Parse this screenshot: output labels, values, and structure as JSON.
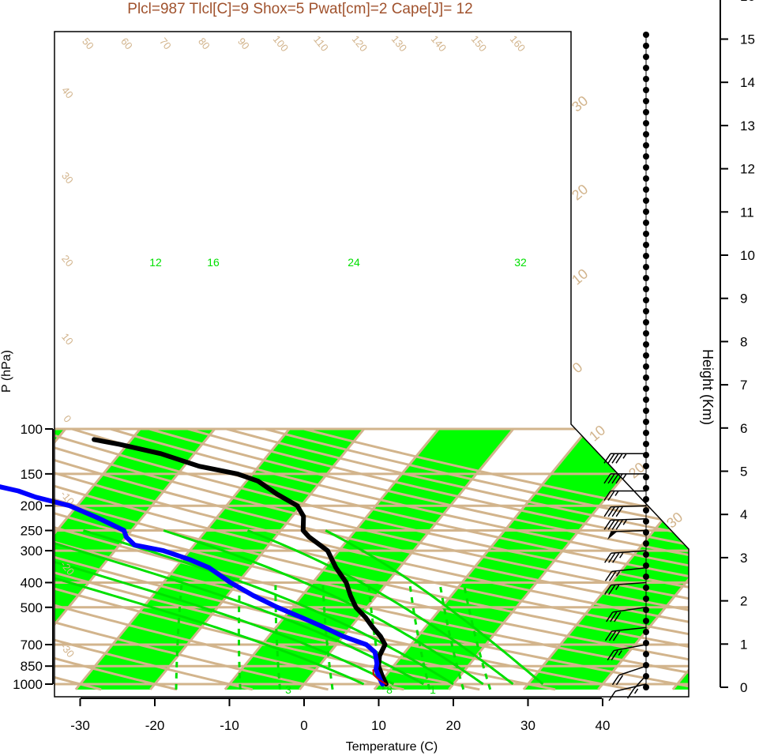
{
  "chart_data": {
    "type": "line",
    "subtype": "skew-T log-P sounding",
    "title": "Plcl=987 Tlcl[C]=9 Shox=5 Pwat[cm]=2 Cape[J]= 12",
    "xlabel": "Temperature (C)",
    "ylabel": "P (hPa)",
    "y2label": "Height (Km)",
    "xlim": [
      -34,
      52
    ],
    "ylim": [
      1050,
      100
    ],
    "yscale": "log",
    "x_ticks": [
      "-30",
      "-20",
      "-10",
      "0",
      "10",
      "20",
      "30",
      "40"
    ],
    "pressure_ticks": [
      "100",
      "150",
      "200",
      "250",
      "300",
      "400",
      "500",
      "700",
      "850",
      "1000"
    ],
    "height_ticks": [
      "0",
      "1",
      "2",
      "3",
      "4",
      "5",
      "6",
      "7",
      "8",
      "9",
      "10",
      "11",
      "12",
      "13",
      "14",
      "15",
      "16"
    ],
    "isotherm_labels": [
      "50",
      "60",
      "70",
      "80",
      "90",
      "100",
      "110",
      "120",
      "130",
      "140",
      "150",
      "160",
      "40",
      "30",
      "20",
      "10",
      "0",
      "-10",
      "-20",
      "-30"
    ],
    "right_temp_labels": [
      "30",
      "20",
      "10",
      "0",
      "10",
      "20",
      "30"
    ],
    "mixing_ratio_labels": [
      "12",
      "16",
      "24",
      "32",
      "3",
      "8",
      "1"
    ],
    "series": [
      {
        "name": "Temperature",
        "color": "#000000",
        "points": [
          [
            11,
            1000
          ],
          [
            9.5,
            925
          ],
          [
            8,
            850
          ],
          [
            7,
            775
          ],
          [
            6.5,
            700
          ],
          [
            5,
            650
          ],
          [
            3,
            600
          ],
          [
            1,
            550
          ],
          [
            -1.5,
            500
          ],
          [
            -3.5,
            450
          ],
          [
            -5.5,
            400
          ],
          [
            -8.5,
            350
          ],
          [
            -11.5,
            300
          ],
          [
            -15.5,
            265
          ],
          [
            -17,
            250
          ],
          [
            -18.5,
            220
          ],
          [
            -20.5,
            200
          ],
          [
            -24.5,
            180
          ],
          [
            -28.5,
            160
          ],
          [
            -32,
            150
          ],
          [
            -38,
            140
          ],
          [
            -44.5,
            125
          ],
          [
            -51,
            115
          ],
          [
            -55,
            110
          ]
        ]
      },
      {
        "name": "Dewpoint",
        "color": "#0000ff",
        "points": [
          [
            10.5,
            1000
          ],
          [
            9.5,
            950
          ],
          [
            8,
            875
          ],
          [
            7.5,
            830
          ],
          [
            6,
            750
          ],
          [
            4,
            700
          ],
          [
            0,
            650
          ],
          [
            -3.5,
            600
          ],
          [
            -7.5,
            550
          ],
          [
            -12,
            500
          ],
          [
            -16.5,
            450
          ],
          [
            -21,
            400
          ],
          [
            -25.5,
            350
          ],
          [
            -29,
            325
          ],
          [
            -33.5,
            300
          ],
          [
            -38,
            285
          ],
          [
            -40,
            265
          ],
          [
            -41,
            250
          ],
          [
            -45.5,
            225
          ],
          [
            -51,
            200
          ],
          [
            -56.5,
            185
          ],
          [
            -59.5,
            175
          ],
          [
            -66.5,
            160
          ],
          [
            -76,
            140
          ],
          [
            -86,
            120
          ],
          [
            -91,
            112
          ]
        ]
      },
      {
        "name": "Parcel",
        "color": "#cc0000",
        "points": [
          [
            11,
            1000
          ],
          [
            9.5,
            960
          ],
          [
            8.3,
            920
          ],
          [
            7.7,
            880
          ]
        ]
      }
    ],
    "wind_barbs": [
      {
        "pressure": 1000,
        "speed_kt": 10,
        "dir_deg": 120
      },
      {
        "pressure": 925,
        "speed_kt": 15,
        "dir_deg": 200
      },
      {
        "pressure": 850,
        "speed_kt": 20,
        "dir_deg": 230
      },
      {
        "pressure": 700,
        "speed_kt": 25,
        "dir_deg": 245
      },
      {
        "pressure": 600,
        "speed_kt": 30,
        "dir_deg": 255
      },
      {
        "pressure": 500,
        "speed_kt": 30,
        "dir_deg": 250
      },
      {
        "pressure": 400,
        "speed_kt": 25,
        "dir_deg": 260
      },
      {
        "pressure": 350,
        "speed_kt": 25,
        "dir_deg": 255
      },
      {
        "pressure": 300,
        "speed_kt": 35,
        "dir_deg": 260
      },
      {
        "pressure": 250,
        "speed_kt": 50,
        "dir_deg": 265
      },
      {
        "pressure": 225,
        "speed_kt": 45,
        "dir_deg": 265
      },
      {
        "pressure": 200,
        "speed_kt": 40,
        "dir_deg": 265
      },
      {
        "pressure": 175,
        "speed_kt": 25,
        "dir_deg": 270
      },
      {
        "pressure": 150,
        "speed_kt": 45,
        "dir_deg": 270
      },
      {
        "pressure": 125,
        "speed_kt": 45,
        "dir_deg": 270
      }
    ],
    "colors": {
      "isotherm": "#d2b48c",
      "isotherm_band": "#00ff00",
      "mixing_ratio": "#00e000",
      "temperature": "#000000",
      "dewpoint": "#0000ff",
      "parcel": "#cc0000",
      "title": "#a0522d"
    }
  }
}
